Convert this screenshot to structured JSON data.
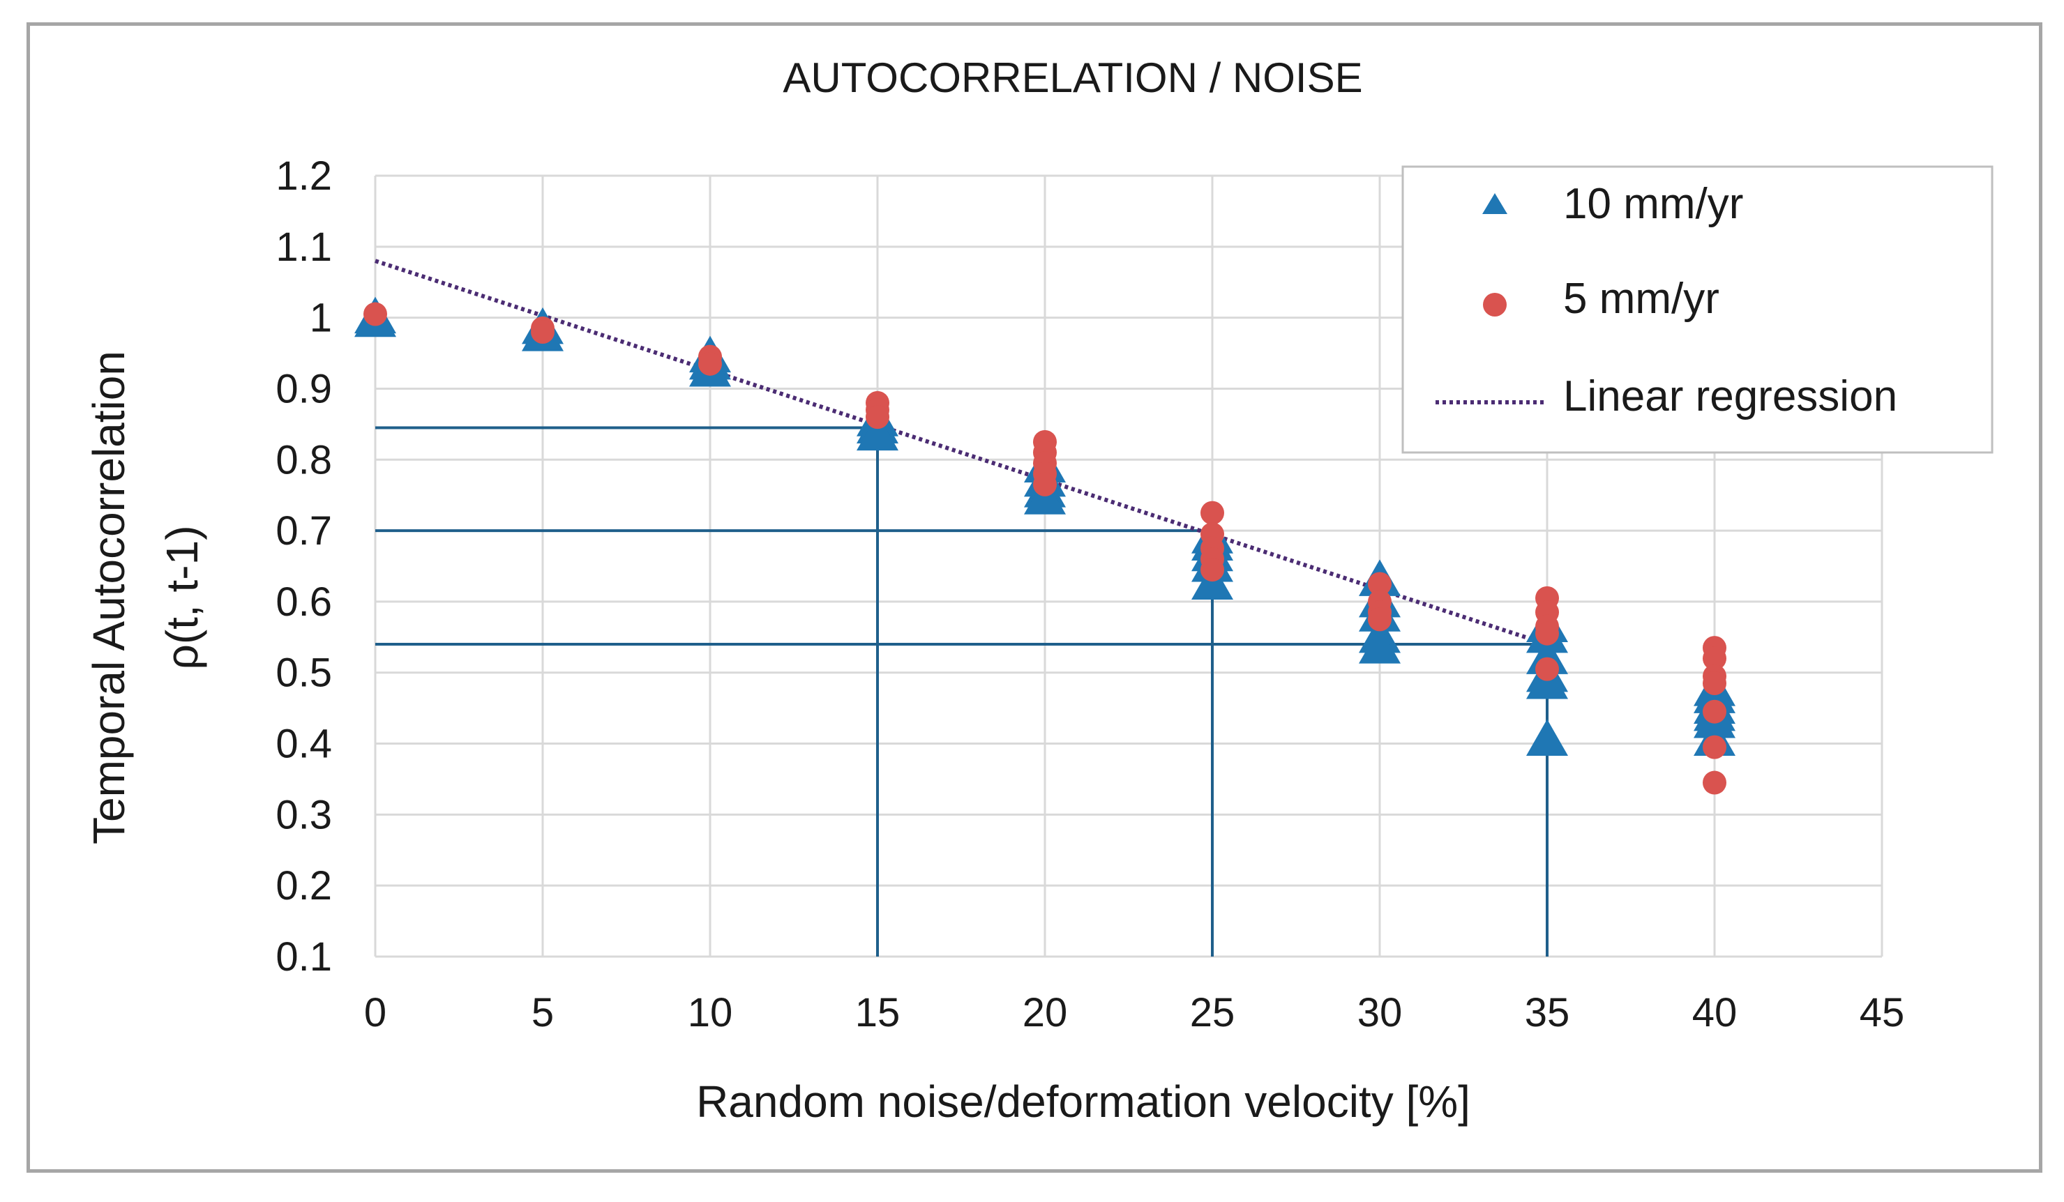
{
  "chart_data": {
    "type": "scatter",
    "title": "AUTOCORRELATION / NOISE",
    "xlabel": "Random noise/deformation velocity [%]",
    "ylabel_line1": "Temporal Autocorrelation",
    "ylabel_line2": "ρ(t, t-1)",
    "xlim": [
      0,
      45
    ],
    "ylim": [
      0.1,
      1.2
    ],
    "x_ticks": [
      0,
      5,
      10,
      15,
      20,
      25,
      30,
      35,
      40,
      45
    ],
    "x_tick_labels": [
      "0",
      "5",
      "10",
      "15",
      "20",
      "25",
      "30",
      "35",
      "40",
      "45"
    ],
    "y_ticks": [
      0.1,
      0.2,
      0.3,
      0.4,
      0.5,
      0.6,
      0.7,
      0.8,
      0.9,
      1.0,
      1.1,
      1.2
    ],
    "y_tick_labels": [
      "0.1",
      "0.2",
      "0.3",
      "0.4",
      "0.5",
      "0.6",
      "0.7",
      "0.8",
      "0.9",
      "1",
      "1.1",
      "1.2"
    ],
    "grid": true,
    "legend_position": "top-right",
    "series": [
      {
        "name": "10 mm/yr",
        "marker": "triangle",
        "color": "#1f77b4",
        "points": [
          [
            0,
            1.0
          ],
          [
            0,
            0.995
          ],
          [
            5,
            0.985
          ],
          [
            5,
            0.975
          ],
          [
            10,
            0.945
          ],
          [
            10,
            0.935
          ],
          [
            10,
            0.925
          ],
          [
            15,
            0.855
          ],
          [
            15,
            0.845
          ],
          [
            15,
            0.835
          ],
          [
            20,
            0.79
          ],
          [
            20,
            0.77
          ],
          [
            20,
            0.755
          ],
          [
            20,
            0.745
          ],
          [
            25,
            0.69
          ],
          [
            25,
            0.68
          ],
          [
            25,
            0.665
          ],
          [
            25,
            0.65
          ],
          [
            25,
            0.625
          ],
          [
            30,
            0.63
          ],
          [
            30,
            0.6
          ],
          [
            30,
            0.58
          ],
          [
            30,
            0.55
          ],
          [
            30,
            0.535
          ],
          [
            35,
            0.565
          ],
          [
            35,
            0.55
          ],
          [
            35,
            0.52
          ],
          [
            35,
            0.495
          ],
          [
            35,
            0.485
          ],
          [
            35,
            0.405
          ],
          [
            40,
            0.475
          ],
          [
            40,
            0.465
          ],
          [
            40,
            0.45
          ],
          [
            40,
            0.44
          ],
          [
            40,
            0.43
          ],
          [
            40,
            0.405
          ]
        ]
      },
      {
        "name": "5 mm/yr",
        "marker": "circle",
        "color": "#d9534f",
        "points": [
          [
            0,
            1.005
          ],
          [
            5,
            0.985
          ],
          [
            5,
            0.98
          ],
          [
            10,
            0.945
          ],
          [
            10,
            0.935
          ],
          [
            15,
            0.88
          ],
          [
            15,
            0.87
          ],
          [
            15,
            0.86
          ],
          [
            20,
            0.825
          ],
          [
            20,
            0.81
          ],
          [
            20,
            0.795
          ],
          [
            20,
            0.78
          ],
          [
            20,
            0.765
          ],
          [
            25,
            0.725
          ],
          [
            25,
            0.695
          ],
          [
            25,
            0.675
          ],
          [
            25,
            0.66
          ],
          [
            25,
            0.645
          ],
          [
            30,
            0.625
          ],
          [
            30,
            0.6
          ],
          [
            30,
            0.585
          ],
          [
            30,
            0.575
          ],
          [
            35,
            0.605
          ],
          [
            35,
            0.585
          ],
          [
            35,
            0.565
          ],
          [
            35,
            0.555
          ],
          [
            35,
            0.505
          ],
          [
            40,
            0.535
          ],
          [
            40,
            0.52
          ],
          [
            40,
            0.495
          ],
          [
            40,
            0.485
          ],
          [
            40,
            0.445
          ],
          [
            40,
            0.395
          ],
          [
            40,
            0.345
          ]
        ]
      }
    ],
    "regression": {
      "name": "Linear regression",
      "color": "#4b2c73",
      "x_range": [
        0,
        35
      ],
      "intercept": 1.08,
      "slope": -0.01543
    },
    "reference_lines": [
      {
        "x": 15,
        "y": 0.845
      },
      {
        "x": 25,
        "y": 0.7
      },
      {
        "x": 35,
        "y": 0.54
      }
    ],
    "reference_color": "#1f5f8b"
  }
}
